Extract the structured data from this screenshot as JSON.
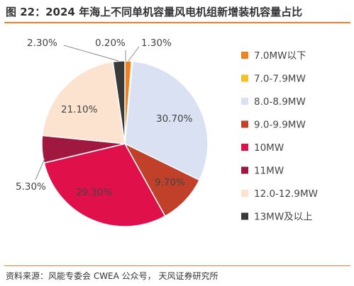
{
  "title": "图 22：2024 年海上不同单机容量风电机组新增装机容量占比",
  "source": "资料来源：风能专委会 CWEA 公众号， 天风证券研究所",
  "chart_data": {
    "type": "pie",
    "title": "图 22：2024 年海上不同单机容量风电机组新增装机容量占比",
    "legend_position": "right",
    "categories": [
      "7.0MW以下",
      "7.0-7.9MW",
      "8.0-8.9MW",
      "9.0-9.9MW",
      "10MW",
      "11MW",
      "12.0-12.9MW",
      "13MW及以上"
    ],
    "values": [
      1.3,
      0.2,
      30.7,
      9.7,
      29.3,
      5.3,
      21.1,
      2.3
    ],
    "value_labels": [
      "1.30%",
      "0.20%",
      "30.70%",
      "9.70%",
      "29.30%",
      "5.30%",
      "21.10%",
      "2.30%"
    ],
    "colors": [
      "#f0821e",
      "#f5c02a",
      "#d9e1f2",
      "#c0402a",
      "#e0104a",
      "#a01840",
      "#fbe3cf",
      "#3a3a3a"
    ]
  }
}
